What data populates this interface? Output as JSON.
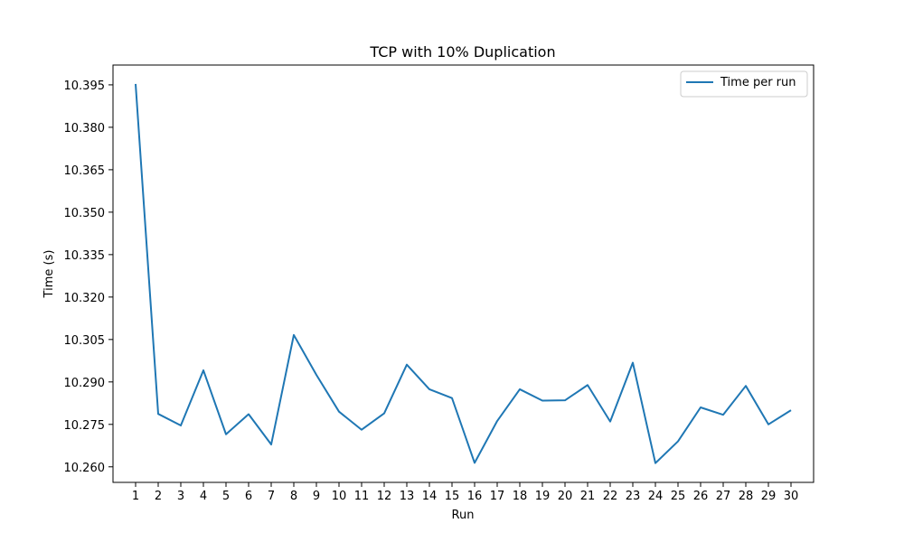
{
  "chart_data": {
    "type": "line",
    "title": "TCP with 10% Duplication",
    "xlabel": "Run",
    "ylabel": "Time (s)",
    "x": [
      1,
      2,
      3,
      4,
      5,
      6,
      7,
      8,
      9,
      10,
      11,
      12,
      13,
      14,
      15,
      16,
      17,
      18,
      19,
      20,
      21,
      22,
      23,
      24,
      25,
      26,
      27,
      28,
      29,
      30
    ],
    "x_ticks": [
      "1",
      "2",
      "3",
      "4",
      "5",
      "6",
      "7",
      "8",
      "9",
      "10",
      "11",
      "12",
      "13",
      "14",
      "15",
      "16",
      "17",
      "18",
      "19",
      "20",
      "21",
      "22",
      "23",
      "24",
      "25",
      "26",
      "27",
      "28",
      "29",
      "30"
    ],
    "y_ticks": [
      "10.260",
      "10.275",
      "10.290",
      "10.305",
      "10.320",
      "10.335",
      "10.350",
      "10.365",
      "10.380",
      "10.395"
    ],
    "ylim": [
      10.2545,
      10.402
    ],
    "xlim": [
      0.0,
      31.0
    ],
    "series": [
      {
        "name": "Time per run",
        "color": "#1f77b4",
        "values": [
          10.3953,
          10.2787,
          10.2746,
          10.2941,
          10.2715,
          10.2786,
          10.2679,
          10.3066,
          10.2925,
          10.2795,
          10.2731,
          10.2789,
          10.2961,
          10.2874,
          10.2843,
          10.2614,
          10.2762,
          10.2874,
          10.2834,
          10.2835,
          10.2889,
          10.276,
          10.2968,
          10.2613,
          10.269,
          10.281,
          10.2784,
          10.2886,
          10.275,
          10.28
        ]
      }
    ],
    "grid": false,
    "legend": "top-right"
  }
}
